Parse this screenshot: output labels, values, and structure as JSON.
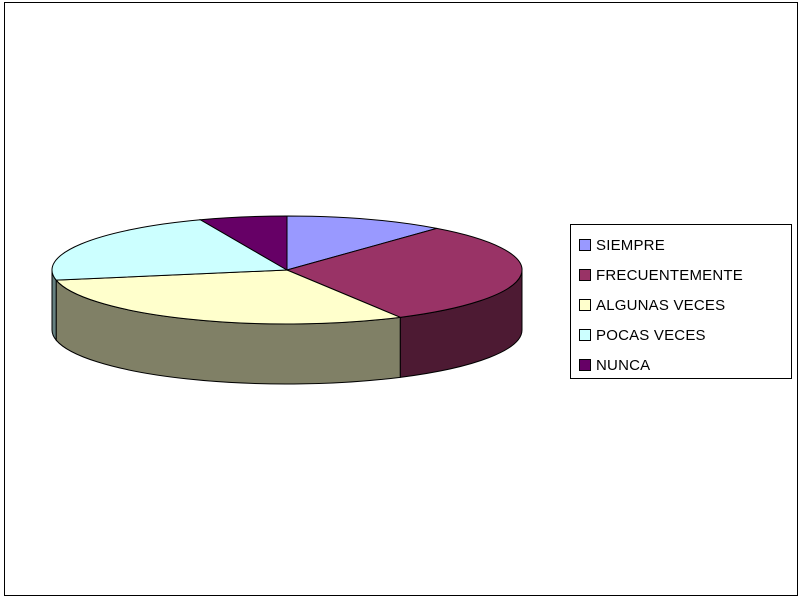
{
  "chart_data": {
    "type": "pie",
    "style": "3d",
    "categories": [
      "SIEMPRE",
      "FRECUENTEMENTE",
      "ALGUNAS VECES",
      "POCAS VECES",
      "NUNCA"
    ],
    "values": [
      11,
      31,
      30,
      22,
      6
    ],
    "colors": [
      "#9999ff",
      "#993366",
      "#ffffcc",
      "#ccffff",
      "#660066"
    ],
    "side_colors": [
      "#4d4d80",
      "#4d1a33",
      "#808066",
      "#668080",
      "#330033"
    ],
    "legend_position": "right",
    "title": "",
    "start_angle_deg": 90
  }
}
